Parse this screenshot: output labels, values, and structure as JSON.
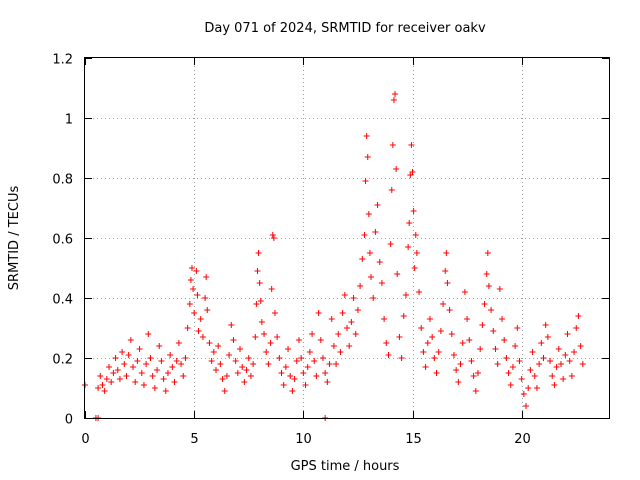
{
  "chart_data": {
    "type": "scatter",
    "title": "Day 071 of 2024, SRMTID for receiver oakv",
    "xlabel": "GPS time / hours",
    "ylabel": "SRMTID / TECUs",
    "xlim": [
      0,
      24
    ],
    "ylim": [
      0,
      1.2
    ],
    "xticks": [
      0,
      5,
      10,
      15,
      20
    ],
    "xtick_labels": [
      "0",
      "5",
      "10",
      "15",
      "20"
    ],
    "yticks": [
      0,
      0.2,
      0.4,
      0.6,
      0.8,
      1.0,
      1.2
    ],
    "ytick_labels": [
      "0",
      "0.2",
      "0.4",
      "0.6",
      "0.8",
      "1",
      "1.2"
    ],
    "grid": true,
    "marker": "+",
    "color": "#ff0000",
    "series": [
      {
        "name": "SRMTID",
        "points": [
          [
            0.0,
            0.11
          ],
          [
            0.5,
            0.0
          ],
          [
            0.6,
            0.0
          ],
          [
            0.6,
            0.1
          ],
          [
            0.7,
            0.14
          ],
          [
            0.8,
            0.11
          ],
          [
            0.9,
            0.09
          ],
          [
            1.0,
            0.13
          ],
          [
            1.1,
            0.17
          ],
          [
            1.2,
            0.12
          ],
          [
            1.3,
            0.15
          ],
          [
            1.4,
            0.2
          ],
          [
            1.5,
            0.16
          ],
          [
            1.6,
            0.13
          ],
          [
            1.7,
            0.22
          ],
          [
            1.8,
            0.18
          ],
          [
            1.9,
            0.14
          ],
          [
            2.0,
            0.21
          ],
          [
            2.1,
            0.26
          ],
          [
            2.2,
            0.17
          ],
          [
            2.3,
            0.12
          ],
          [
            2.4,
            0.19
          ],
          [
            2.5,
            0.23
          ],
          [
            2.6,
            0.15
          ],
          [
            2.7,
            0.11
          ],
          [
            2.8,
            0.18
          ],
          [
            2.9,
            0.28
          ],
          [
            3.0,
            0.2
          ],
          [
            3.1,
            0.14
          ],
          [
            3.2,
            0.1
          ],
          [
            3.3,
            0.16
          ],
          [
            3.4,
            0.24
          ],
          [
            3.5,
            0.19
          ],
          [
            3.6,
            0.13
          ],
          [
            3.7,
            0.09
          ],
          [
            3.8,
            0.15
          ],
          [
            3.9,
            0.21
          ],
          [
            4.0,
            0.17
          ],
          [
            4.1,
            0.12
          ],
          [
            4.2,
            0.19
          ],
          [
            4.3,
            0.25
          ],
          [
            4.4,
            0.18
          ],
          [
            4.5,
            0.14
          ],
          [
            4.6,
            0.2
          ],
          [
            4.7,
            0.3
          ],
          [
            4.8,
            0.38
          ],
          [
            4.85,
            0.46
          ],
          [
            4.9,
            0.5
          ],
          [
            4.95,
            0.43
          ],
          [
            5.0,
            0.35
          ],
          [
            5.1,
            0.49
          ],
          [
            5.15,
            0.41
          ],
          [
            5.2,
            0.29
          ],
          [
            5.3,
            0.33
          ],
          [
            5.4,
            0.27
          ],
          [
            5.5,
            0.4
          ],
          [
            5.55,
            0.47
          ],
          [
            5.6,
            0.36
          ],
          [
            5.7,
            0.25
          ],
          [
            5.8,
            0.19
          ],
          [
            5.9,
            0.22
          ],
          [
            6.0,
            0.16
          ],
          [
            6.1,
            0.24
          ],
          [
            6.2,
            0.18
          ],
          [
            6.3,
            0.13
          ],
          [
            6.4,
            0.09
          ],
          [
            6.5,
            0.14
          ],
          [
            6.6,
            0.21
          ],
          [
            6.7,
            0.31
          ],
          [
            6.8,
            0.26
          ],
          [
            6.9,
            0.19
          ],
          [
            7.0,
            0.15
          ],
          [
            7.1,
            0.23
          ],
          [
            7.2,
            0.17
          ],
          [
            7.3,
            0.12
          ],
          [
            7.4,
            0.16
          ],
          [
            7.5,
            0.2
          ],
          [
            7.6,
            0.14
          ],
          [
            7.7,
            0.18
          ],
          [
            7.8,
            0.27
          ],
          [
            7.85,
            0.38
          ],
          [
            7.9,
            0.49
          ],
          [
            7.95,
            0.55
          ],
          [
            8.0,
            0.45
          ],
          [
            8.05,
            0.39
          ],
          [
            8.1,
            0.32
          ],
          [
            8.2,
            0.28
          ],
          [
            8.3,
            0.22
          ],
          [
            8.4,
            0.18
          ],
          [
            8.5,
            0.25
          ],
          [
            8.55,
            0.43
          ],
          [
            8.6,
            0.61
          ],
          [
            8.65,
            0.6
          ],
          [
            8.7,
            0.35
          ],
          [
            8.8,
            0.27
          ],
          [
            8.9,
            0.2
          ],
          [
            9.0,
            0.15
          ],
          [
            9.1,
            0.11
          ],
          [
            9.2,
            0.17
          ],
          [
            9.3,
            0.23
          ],
          [
            9.4,
            0.14
          ],
          [
            9.5,
            0.09
          ],
          [
            9.6,
            0.13
          ],
          [
            9.7,
            0.19
          ],
          [
            9.8,
            0.26
          ],
          [
            9.9,
            0.2
          ],
          [
            10.0,
            0.15
          ],
          [
            10.1,
            0.11
          ],
          [
            10.2,
            0.17
          ],
          [
            10.3,
            0.22
          ],
          [
            10.4,
            0.28
          ],
          [
            10.5,
            0.19
          ],
          [
            10.6,
            0.14
          ],
          [
            10.7,
            0.35
          ],
          [
            10.8,
            0.26
          ],
          [
            10.9,
            0.2
          ],
          [
            11.0,
            0.0
          ],
          [
            11.0,
            0.15
          ],
          [
            11.1,
            0.12
          ],
          [
            11.2,
            0.18
          ],
          [
            11.3,
            0.33
          ],
          [
            11.4,
            0.24
          ],
          [
            11.5,
            0.18
          ],
          [
            11.6,
            0.28
          ],
          [
            11.7,
            0.22
          ],
          [
            11.8,
            0.35
          ],
          [
            11.9,
            0.41
          ],
          [
            12.0,
            0.3
          ],
          [
            12.1,
            0.24
          ],
          [
            12.2,
            0.32
          ],
          [
            12.3,
            0.4
          ],
          [
            12.4,
            0.28
          ],
          [
            12.5,
            0.36
          ],
          [
            12.6,
            0.44
          ],
          [
            12.7,
            0.53
          ],
          [
            12.8,
            0.61
          ],
          [
            12.85,
            0.79
          ],
          [
            12.9,
            0.94
          ],
          [
            12.95,
            0.87
          ],
          [
            13.0,
            0.68
          ],
          [
            13.05,
            0.55
          ],
          [
            13.1,
            0.47
          ],
          [
            13.2,
            0.4
          ],
          [
            13.3,
            0.62
          ],
          [
            13.4,
            0.71
          ],
          [
            13.5,
            0.52
          ],
          [
            13.6,
            0.45
          ],
          [
            13.7,
            0.33
          ],
          [
            13.8,
            0.25
          ],
          [
            13.9,
            0.21
          ],
          [
            14.0,
            0.58
          ],
          [
            14.05,
            0.76
          ],
          [
            14.1,
            0.91
          ],
          [
            14.15,
            1.06
          ],
          [
            14.2,
            1.08
          ],
          [
            14.25,
            0.83
          ],
          [
            14.3,
            0.48
          ],
          [
            14.4,
            0.27
          ],
          [
            14.5,
            0.2
          ],
          [
            14.6,
            0.34
          ],
          [
            14.7,
            0.41
          ],
          [
            14.8,
            0.57
          ],
          [
            14.85,
            0.65
          ],
          [
            14.9,
            0.81
          ],
          [
            14.95,
            0.91
          ],
          [
            15.0,
            0.82
          ],
          [
            15.05,
            0.69
          ],
          [
            15.1,
            0.5
          ],
          [
            15.15,
            0.61
          ],
          [
            15.2,
            0.55
          ],
          [
            15.3,
            0.42
          ],
          [
            15.4,
            0.3
          ],
          [
            15.5,
            0.22
          ],
          [
            15.6,
            0.17
          ],
          [
            15.7,
            0.25
          ],
          [
            15.8,
            0.33
          ],
          [
            15.9,
            0.27
          ],
          [
            16.0,
            0.2
          ],
          [
            16.1,
            0.15
          ],
          [
            16.2,
            0.22
          ],
          [
            16.3,
            0.29
          ],
          [
            16.4,
            0.38
          ],
          [
            16.5,
            0.49
          ],
          [
            16.55,
            0.55
          ],
          [
            16.6,
            0.45
          ],
          [
            16.7,
            0.36
          ],
          [
            16.8,
            0.28
          ],
          [
            16.9,
            0.21
          ],
          [
            17.0,
            0.16
          ],
          [
            17.1,
            0.12
          ],
          [
            17.2,
            0.18
          ],
          [
            17.3,
            0.25
          ],
          [
            17.4,
            0.42
          ],
          [
            17.5,
            0.33
          ],
          [
            17.6,
            0.26
          ],
          [
            17.7,
            0.19
          ],
          [
            17.8,
            0.14
          ],
          [
            17.9,
            0.09
          ],
          [
            18.0,
            0.15
          ],
          [
            18.1,
            0.23
          ],
          [
            18.2,
            0.31
          ],
          [
            18.3,
            0.38
          ],
          [
            18.4,
            0.48
          ],
          [
            18.45,
            0.55
          ],
          [
            18.5,
            0.44
          ],
          [
            18.6,
            0.36
          ],
          [
            18.7,
            0.29
          ],
          [
            18.8,
            0.23
          ],
          [
            18.9,
            0.18
          ],
          [
            19.0,
            0.43
          ],
          [
            19.1,
            0.33
          ],
          [
            19.2,
            0.26
          ],
          [
            19.3,
            0.2
          ],
          [
            19.4,
            0.15
          ],
          [
            19.5,
            0.11
          ],
          [
            19.6,
            0.17
          ],
          [
            19.7,
            0.24
          ],
          [
            19.8,
            0.3
          ],
          [
            19.9,
            0.19
          ],
          [
            20.0,
            0.13
          ],
          [
            20.1,
            0.08
          ],
          [
            20.2,
            0.04
          ],
          [
            20.3,
            0.1
          ],
          [
            20.4,
            0.16
          ],
          [
            20.5,
            0.22
          ],
          [
            20.6,
            0.14
          ],
          [
            20.7,
            0.1
          ],
          [
            20.8,
            0.18
          ],
          [
            20.9,
            0.25
          ],
          [
            21.0,
            0.2
          ],
          [
            21.1,
            0.31
          ],
          [
            21.2,
            0.27
          ],
          [
            21.3,
            0.19
          ],
          [
            21.4,
            0.14
          ],
          [
            21.5,
            0.11
          ],
          [
            21.6,
            0.17
          ],
          [
            21.7,
            0.23
          ],
          [
            21.8,
            0.18
          ],
          [
            21.9,
            0.13
          ],
          [
            22.0,
            0.21
          ],
          [
            22.1,
            0.28
          ],
          [
            22.2,
            0.19
          ],
          [
            22.3,
            0.14
          ],
          [
            22.4,
            0.22
          ],
          [
            22.5,
            0.3
          ],
          [
            22.6,
            0.34
          ],
          [
            22.7,
            0.24
          ],
          [
            22.8,
            0.18
          ]
        ]
      }
    ]
  }
}
